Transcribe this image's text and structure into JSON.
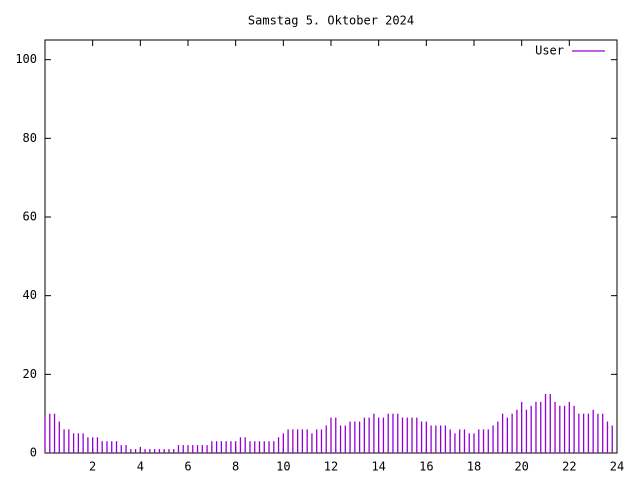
{
  "chart_data": {
    "type": "impulse",
    "title": "Samstag 5. Oktober 2024",
    "xlim": [
      0,
      24
    ],
    "xticks": [
      2,
      4,
      6,
      8,
      10,
      12,
      14,
      16,
      18,
      20,
      22,
      24
    ],
    "ylim": [
      0,
      105
    ],
    "yticks": [
      0,
      20,
      40,
      60,
      80,
      100
    ],
    "legend": "top-right",
    "x": [
      0,
      0.2,
      0.4,
      0.6,
      0.8,
      1,
      1.2,
      1.4,
      1.6,
      1.8,
      2,
      2.2,
      2.4,
      2.6,
      2.8,
      3,
      3.2,
      3.4,
      3.6,
      3.8,
      4,
      4.2,
      4.4,
      4.6,
      4.8,
      5,
      5.2,
      5.4,
      5.6,
      5.8,
      6,
      6.2,
      6.4,
      6.6,
      6.8,
      7,
      7.2,
      7.4,
      7.6,
      7.8,
      8,
      8.2,
      8.4,
      8.6,
      8.8,
      9,
      9.2,
      9.4,
      9.6,
      9.8,
      10,
      10.2,
      10.4,
      10.6,
      10.8,
      11,
      11.2,
      11.4,
      11.6,
      11.8,
      12,
      12.2,
      12.4,
      12.6,
      12.8,
      13,
      13.2,
      13.4,
      13.6,
      13.8,
      14,
      14.2,
      14.4,
      14.6,
      14.8,
      15,
      15.2,
      15.4,
      15.6,
      15.8,
      16,
      16.2,
      16.4,
      16.6,
      16.8,
      17,
      17.2,
      17.4,
      17.6,
      17.8,
      18,
      18.2,
      18.4,
      18.6,
      18.8,
      19,
      19.2,
      19.4,
      19.6,
      19.8,
      20,
      20.2,
      20.4,
      20.6,
      20.8,
      21,
      21.2,
      21.4,
      21.6,
      21.8,
      22,
      22.2,
      22.4,
      22.6,
      22.8,
      23,
      23.2,
      23.4,
      23.6,
      23.8
    ],
    "series": [
      {
        "name": "User",
        "color": "#9400d3",
        "values": [
          9,
          10,
          10,
          8,
          6,
          6,
          5,
          5,
          5,
          4,
          4,
          4,
          3,
          3,
          3,
          3,
          2,
          2,
          1,
          1,
          1,
          1,
          1,
          1,
          1,
          1,
          1,
          1,
          2,
          2,
          2,
          2,
          2,
          2,
          2,
          3,
          3,
          3,
          3,
          3,
          3,
          4,
          4,
          3,
          3,
          3,
          3,
          3,
          3,
          4,
          5,
          6,
          6,
          6,
          6,
          6,
          5,
          6,
          6,
          7,
          9,
          9,
          7,
          7,
          8,
          8,
          8,
          9,
          9,
          10,
          9,
          9,
          10,
          10,
          10,
          9,
          9,
          9,
          9,
          8,
          8,
          7,
          7,
          7,
          7,
          6,
          5,
          6,
          6,
          5,
          5,
          6,
          6,
          6,
          7,
          8,
          10,
          9,
          10,
          11,
          13,
          11,
          12,
          13,
          13,
          15,
          15,
          13,
          12,
          12,
          13,
          12,
          10,
          10,
          10,
          11,
          10,
          10,
          8,
          7
        ]
      }
    ]
  }
}
